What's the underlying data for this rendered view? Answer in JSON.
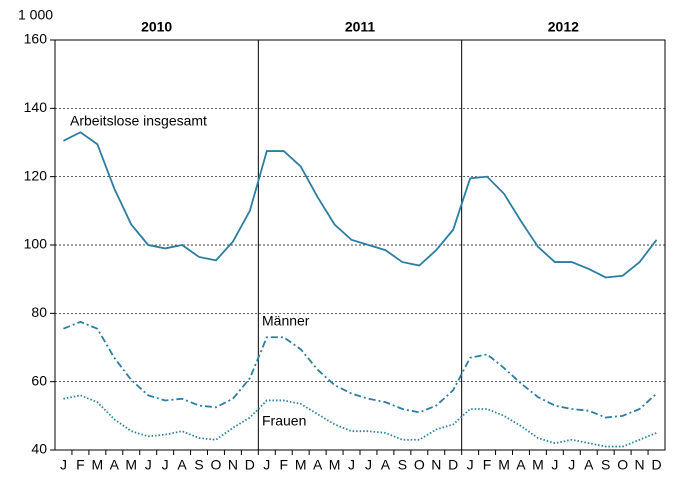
{
  "chart_data": {
    "type": "line",
    "y_unit": "1 000",
    "years": [
      "2010",
      "2011",
      "2012"
    ],
    "categories": [
      "J",
      "F",
      "M",
      "A",
      "M",
      "J",
      "J",
      "A",
      "S",
      "O",
      "N",
      "D",
      "J",
      "F",
      "M",
      "A",
      "M",
      "J",
      "J",
      "A",
      "S",
      "O",
      "N",
      "D",
      "J",
      "F",
      "M",
      "A",
      "M",
      "J",
      "J",
      "A",
      "S",
      "O",
      "N",
      "D"
    ],
    "series": [
      {
        "name": "Arbeitslose insgesamt",
        "color": "#2b7ea1",
        "style": "solid",
        "values": [
          130.5,
          133,
          129.5,
          116.5,
          106,
          100,
          99,
          100,
          96.5,
          95.5,
          101,
          110,
          127.5,
          127.5,
          123,
          114,
          106,
          101.5,
          100,
          98.5,
          95,
          94,
          98.5,
          104.5,
          119.5,
          120,
          115,
          107,
          99.5,
          95,
          95,
          93,
          90.5,
          91,
          95,
          101.5
        ]
      },
      {
        "name": "Männer",
        "color": "#2b7ea1",
        "style": "dashdot",
        "values": [
          75.5,
          77.5,
          75.5,
          67,
          60.5,
          56,
          54.5,
          55,
          53,
          52.5,
          55,
          61,
          73,
          73,
          69.5,
          63.5,
          59,
          56.5,
          55,
          54,
          52,
          51,
          53,
          57.5,
          67,
          68,
          64,
          59.5,
          55.5,
          53,
          52,
          51.5,
          49.5,
          50,
          52,
          56.5
        ]
      },
      {
        "name": "Frauen",
        "color": "#2b7ea1",
        "style": "dotted",
        "values": [
          55,
          56,
          54,
          49,
          45.5,
          44,
          44.5,
          45.5,
          43.5,
          43,
          46.5,
          49.5,
          54.5,
          54.5,
          53.5,
          50.5,
          47.5,
          45.5,
          45.5,
          45,
          43,
          43,
          46,
          47.5,
          52,
          52,
          50,
          47,
          43.5,
          42,
          43,
          42,
          41,
          41,
          43,
          45
        ]
      }
    ],
    "ylim": [
      40,
      160
    ],
    "yticks": [
      40,
      60,
      80,
      100,
      120,
      140,
      160
    ],
    "grid": true
  }
}
